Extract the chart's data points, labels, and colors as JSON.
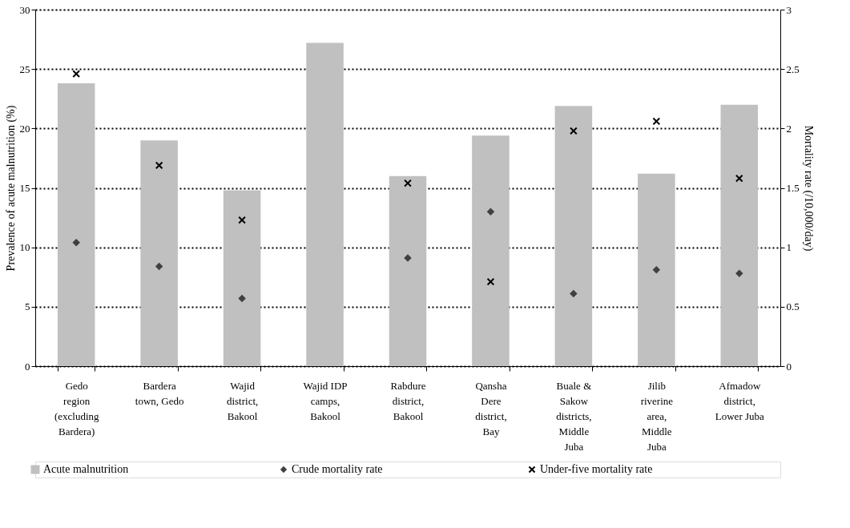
{
  "chart_data": {
    "type": "bar",
    "categories": [
      "Gedo region (excluding Bardera)",
      "Bardera town, Gedo",
      "Wajid district, Bakool",
      "Wajid IDP camps, Bakool",
      "Rabdure district, Bakool",
      "Qansha Dere district, Bay",
      "Buale & Sakow districts, Middle Juba",
      "Jilib riverine area, Middle Juba",
      "Afmadow district, Lower Juba"
    ],
    "ylabel": "Prevalence of acute malnutrition (%)",
    "y2label": "Mortality rate (/10,000/day)",
    "ylim": [
      0,
      30
    ],
    "yticks": [
      0,
      5,
      10,
      15,
      20,
      25,
      30
    ],
    "y2lim": [
      0,
      3
    ],
    "y2ticks": [
      0,
      0.5,
      1,
      1.5,
      2,
      2.5,
      3
    ],
    "grid": "y",
    "legend": "bottom",
    "series": [
      {
        "name": "Acute malnutrition",
        "color": "#c0c0c0",
        "values": [
          23.8,
          19.0,
          14.8,
          27.2,
          16.0,
          19.4,
          21.9,
          16.2,
          22.0
        ]
      },
      {
        "name": "Crude mortality rate",
        "type": "scatter",
        "marker": "diamond",
        "axis": "y2",
        "color": "#404040",
        "values": [
          1.04,
          0.84,
          0.57,
          null,
          0.91,
          1.3,
          0.61,
          0.81,
          0.78
        ]
      },
      {
        "name": "Under-five mortality rate",
        "type": "scatter",
        "marker": "cross",
        "axis": "y2",
        "color": "#000000",
        "values": [
          2.46,
          1.69,
          1.23,
          null,
          1.54,
          0.71,
          1.98,
          2.06,
          1.58
        ]
      }
    ]
  }
}
